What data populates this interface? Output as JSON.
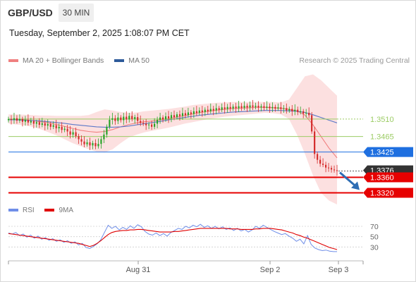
{
  "header": {
    "symbol": "GBP/USD",
    "timeframe": "30 MIN"
  },
  "timestamp": "Tuesday, September 2, 2025 1:08:07 PM CET",
  "legend": [
    {
      "label": "MA 20 + Bollinger Bands",
      "color": "#f08080"
    },
    {
      "label": "MA 50",
      "color": "#2e5b9a"
    }
  ],
  "credit": "Research © 2025 Trading Central",
  "colors": {
    "up": "#27a327",
    "down": "#d42a2a",
    "resistance": "#9ccc65",
    "pivot": "#1e6fe0",
    "support": "#e60000",
    "current": "#333333",
    "arrow": "#2e6db4",
    "bb_fill": "#fbd5d5",
    "ma20": "#f08080",
    "ma50": "#5b78c8",
    "rsi": "#6f8ee8",
    "rsi_ma": "#e00000"
  },
  "chart_data": [
    {
      "type": "candlestick",
      "instrument": "GBP/USD",
      "interval": "30 MIN",
      "x_ticks": [
        "Aug 31",
        "Sep 2",
        "Sep 3"
      ],
      "ylim": [
        1.329,
        1.3635
      ],
      "levels": [
        {
          "value": 1.351,
          "label": "1.3510",
          "kind": "resistance"
        },
        {
          "value": 1.3465,
          "label": "1.3465",
          "kind": "resistance"
        },
        {
          "value": 1.3425,
          "label": "1.3425",
          "kind": "pivot"
        },
        {
          "value": 1.3376,
          "label": "1.3376",
          "kind": "current"
        },
        {
          "value": 1.336,
          "label": "1.3360",
          "kind": "support"
        },
        {
          "value": 1.332,
          "label": "1.3320",
          "kind": "support"
        }
      ],
      "closes": [
        1.351,
        1.3508,
        1.3512,
        1.3506,
        1.351,
        1.3503,
        1.3508,
        1.3501,
        1.3505,
        1.3498,
        1.3502,
        1.3495,
        1.3499,
        1.3493,
        1.3497,
        1.349,
        1.3494,
        1.3486,
        1.349,
        1.3482,
        1.3485,
        1.3478,
        1.347,
        1.3476,
        1.3466,
        1.3458,
        1.3452,
        1.3445,
        1.345,
        1.3442,
        1.3448,
        1.344,
        1.3446,
        1.3458,
        1.347,
        1.349,
        1.3508,
        1.3512,
        1.3505,
        1.3514,
        1.3507,
        1.3516,
        1.3509,
        1.3518,
        1.351,
        1.3515,
        1.3505,
        1.35,
        1.3498,
        1.3494,
        1.3496,
        1.349,
        1.3498,
        1.3508,
        1.3514,
        1.3509,
        1.3517,
        1.3512,
        1.352,
        1.3515,
        1.3522,
        1.3518,
        1.3525,
        1.352,
        1.3527,
        1.3523,
        1.353,
        1.3526,
        1.3532,
        1.3528,
        1.3534,
        1.353,
        1.3536,
        1.3532,
        1.3538,
        1.3534,
        1.354,
        1.3536,
        1.3541,
        1.3537,
        1.3542,
        1.3538,
        1.3543,
        1.3539,
        1.3544,
        1.354,
        1.3545,
        1.3541,
        1.3544,
        1.354,
        1.3543,
        1.3539,
        1.3542,
        1.3538,
        1.3541,
        1.3537,
        1.354,
        1.3536,
        1.3538,
        1.3532,
        1.3536,
        1.353,
        1.3534,
        1.3528,
        1.353,
        1.3524,
        1.3526,
        1.352,
        1.3478,
        1.342,
        1.3405,
        1.3395,
        1.3392,
        1.3385,
        1.3384,
        1.338,
        1.3378,
        1.3376
      ],
      "ma20": [
        1.351,
        1.3509,
        1.3508,
        1.3506,
        1.3503,
        1.35,
        1.3496,
        1.3491,
        1.3486,
        1.3481,
        1.3478,
        1.3476,
        1.3478,
        1.3483,
        1.349,
        1.3496,
        1.35,
        1.3503,
        1.3505,
        1.3508,
        1.3511,
        1.3515,
        1.3519,
        1.3523,
        1.3527,
        1.353,
        1.3533,
        1.3535,
        1.3537,
        1.3538,
        1.3539,
        1.354,
        1.354,
        1.3539,
        1.3538,
        1.3535,
        1.3531,
        1.352,
        1.3495,
        1.3465,
        1.3435,
        1.341
      ],
      "bb_upper": [
        1.3522,
        1.3522,
        1.3521,
        1.352,
        1.3519,
        1.3519,
        1.3518,
        1.3518,
        1.3518,
        1.3518,
        1.352,
        1.3528,
        1.3535,
        1.3532,
        1.3528,
        1.3526,
        1.3527,
        1.353,
        1.3532,
        1.3534,
        1.3536,
        1.3539,
        1.3542,
        1.3546,
        1.3548,
        1.355,
        1.3552,
        1.3553,
        1.3554,
        1.3554,
        1.3554,
        1.3554,
        1.3554,
        1.3554,
        1.3553,
        1.356,
        1.359,
        1.362,
        1.3625,
        1.361,
        1.359,
        1.357
      ],
      "bb_lower": [
        1.3498,
        1.3496,
        1.3494,
        1.349,
        1.3484,
        1.3476,
        1.3468,
        1.3458,
        1.3448,
        1.344,
        1.3432,
        1.3426,
        1.3424,
        1.3432,
        1.3448,
        1.3462,
        1.347,
        1.3476,
        1.348,
        1.3484,
        1.3488,
        1.3493,
        1.3498,
        1.3502,
        1.3506,
        1.351,
        1.3513,
        1.3516,
        1.3518,
        1.352,
        1.3522,
        1.3524,
        1.3526,
        1.3525,
        1.3522,
        1.351,
        1.347,
        1.342,
        1.3365,
        1.332,
        1.33,
        1.329
      ],
      "ma50": [
        1.3508,
        1.3508,
        1.3507,
        1.3506,
        1.3505,
        1.3503,
        1.3501,
        1.3499,
        1.3496,
        1.3494,
        1.3492,
        1.349,
        1.3489,
        1.3489,
        1.349,
        1.3492,
        1.3495,
        1.3498,
        1.3501,
        1.3504,
        1.3508,
        1.3511,
        1.3514,
        1.3517,
        1.352,
        1.3522,
        1.3524,
        1.3526,
        1.3528,
        1.3529,
        1.353,
        1.3531,
        1.3532,
        1.3532,
        1.3532,
        1.3531,
        1.353,
        1.3527,
        1.3521,
        1.3514,
        1.3507,
        1.35
      ],
      "projection": {
        "from": 1.3376,
        "to": 1.332
      }
    },
    {
      "type": "line",
      "title": "RSI",
      "series": [
        {
          "name": "RSI",
          "values": [
            57,
            55,
            58,
            52,
            55,
            49,
            53,
            47,
            51,
            45,
            48,
            43,
            46,
            41,
            44,
            39,
            42,
            37,
            40,
            34,
            37,
            29,
            27,
            31,
            36,
            44,
            58,
            72,
            66,
            70,
            63,
            68,
            64,
            71,
            66,
            73,
            69,
            60,
            55,
            53,
            57,
            52,
            56,
            51,
            58,
            62,
            66,
            64,
            70,
            67,
            72,
            69,
            74,
            68,
            71,
            66,
            70,
            65,
            69,
            64,
            67,
            62,
            66,
            61,
            64,
            59,
            63,
            70,
            66,
            72,
            68,
            64,
            60,
            57,
            54,
            56,
            51,
            47,
            41,
            45,
            36,
            52,
            35,
            28,
            25,
            23,
            24,
            22,
            21,
            21
          ]
        },
        {
          "name": "9MA",
          "values": [
            56,
            55,
            54,
            53,
            52,
            51,
            50,
            49,
            48,
            47,
            46,
            45,
            44,
            43,
            42,
            41,
            40,
            39,
            38,
            37,
            35,
            33,
            31,
            33,
            37,
            42,
            48,
            54,
            58,
            60,
            61,
            62,
            62,
            63,
            63,
            64,
            64,
            63,
            62,
            61,
            60,
            59,
            59,
            59,
            59,
            60,
            60,
            61,
            62,
            63,
            64,
            65,
            66,
            66,
            66,
            66,
            66,
            66,
            66,
            66,
            65,
            65,
            65,
            64,
            64,
            64,
            64,
            65,
            65,
            66,
            66,
            66,
            65,
            64,
            63,
            61,
            59,
            57,
            54,
            52,
            49,
            47,
            44,
            41,
            38,
            35,
            32,
            29,
            27,
            25
          ]
        }
      ],
      "y_ticks": [
        70,
        50,
        30
      ],
      "ylim": [
        10,
        85
      ]
    }
  ]
}
